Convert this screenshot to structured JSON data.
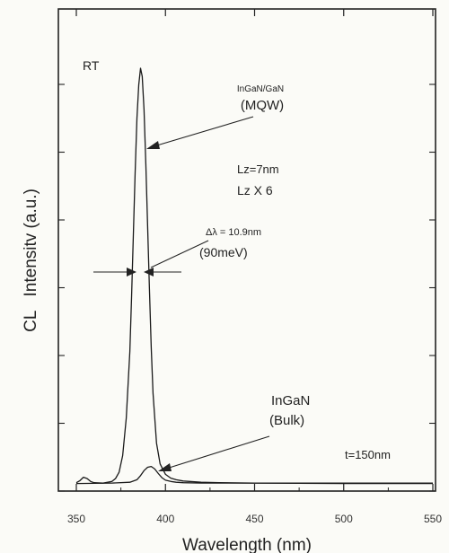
{
  "chart_data": {
    "type": "line",
    "xlabel": "Wavelength (nm)",
    "ylabel": "CL   Intensitv (a.u.)",
    "xlim": [
      350,
      550
    ],
    "ylim": [
      0,
      1.0
    ],
    "xticks": [
      350,
      400,
      450,
      500,
      550
    ],
    "grid": false,
    "series": [
      {
        "x": [
          350,
          352,
          354,
          356,
          358,
          360,
          365,
          370,
          372,
          374,
          376,
          378,
          380,
          381,
          382,
          383,
          384,
          385,
          386,
          387,
          388,
          389,
          390,
          391,
          392,
          393,
          395,
          397,
          400,
          403,
          406,
          410,
          420,
          430,
          450,
          470,
          500,
          530,
          550
        ],
        "y": [
          0.005,
          0.01,
          0.018,
          0.015,
          0.008,
          0.005,
          0.004,
          0.008,
          0.015,
          0.03,
          0.07,
          0.16,
          0.32,
          0.45,
          0.6,
          0.75,
          0.88,
          0.96,
          1.0,
          0.98,
          0.9,
          0.77,
          0.62,
          0.47,
          0.33,
          0.22,
          0.1,
          0.05,
          0.025,
          0.016,
          0.012,
          0.009,
          0.006,
          0.005,
          0.004,
          0.004,
          0.004,
          0.004,
          0.004
        ]
      },
      {
        "x": [
          350,
          370,
          380,
          384,
          386,
          388,
          390,
          392,
          394,
          396,
          398,
          400,
          403,
          406,
          410,
          420,
          450,
          500,
          550
        ],
        "y": [
          0.003,
          0.004,
          0.006,
          0.012,
          0.022,
          0.034,
          0.042,
          0.044,
          0.038,
          0.027,
          0.017,
          0.011,
          0.008,
          0.006,
          0.005,
          0.004,
          0.004,
          0.003,
          0.003
        ]
      }
    ],
    "annotations": {
      "rt": "RT",
      "mqw_line1": "InGaN/GaN",
      "mqw_line2": "(MQW)",
      "lz1": "Lz=7nm",
      "lz2": "Lz X 6",
      "fwhm_line1": "Δλ = 10.9nm",
      "fwhm_line2": "(90meV)",
      "bulk_line1": "InGaN",
      "bulk_line2": "(Bulk)",
      "thickness": "t=150nm"
    }
  }
}
